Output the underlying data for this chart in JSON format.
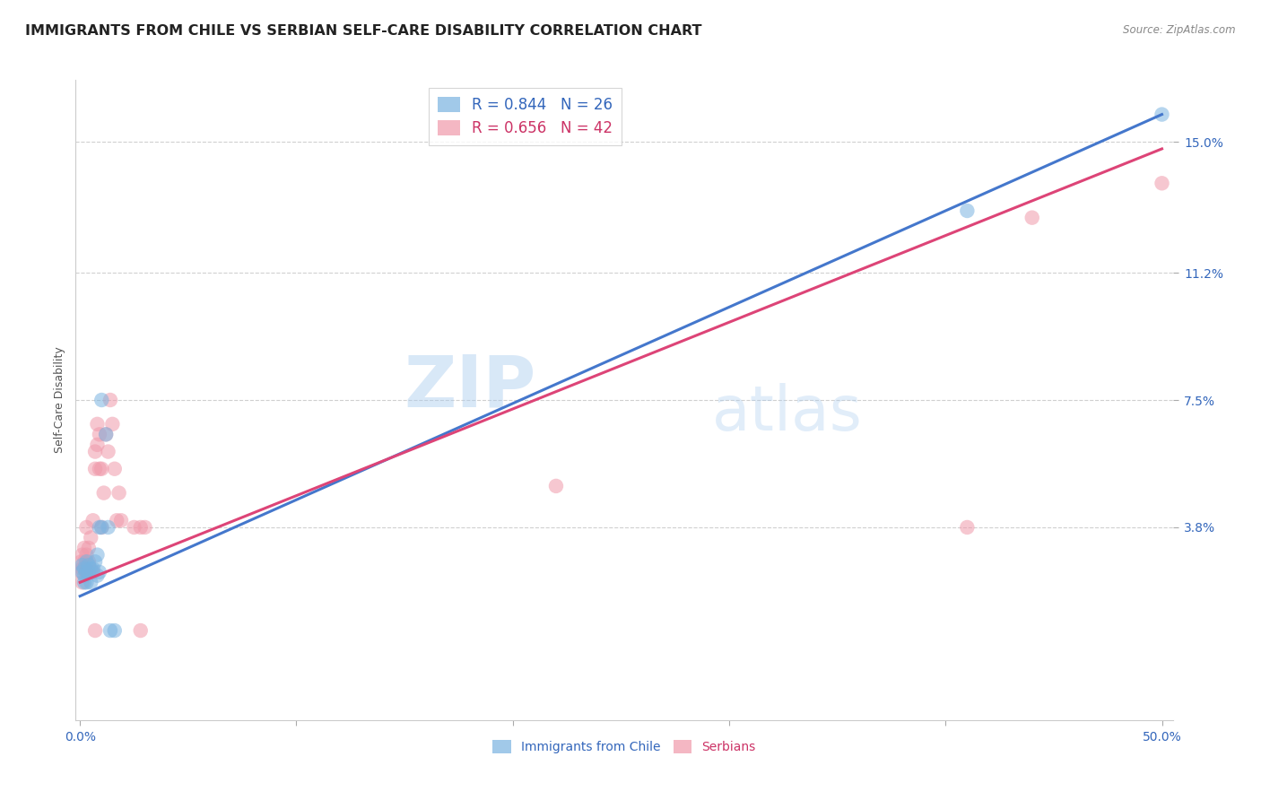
{
  "title": "IMMIGRANTS FROM CHILE VS SERBIAN SELF-CARE DISABILITY CORRELATION CHART",
  "source": "Source: ZipAtlas.com",
  "ylabel": "Self-Care Disability",
  "y_ticks": [
    0.038,
    0.075,
    0.112,
    0.15
  ],
  "y_tick_labels": [
    "3.8%",
    "7.5%",
    "11.2%",
    "15.0%"
  ],
  "x_lim": [
    -0.002,
    0.505
  ],
  "y_lim": [
    -0.018,
    0.168
  ],
  "watermark_zip": "ZIP",
  "watermark_atlas": "atlas",
  "legend_entries": [
    {
      "R": "0.844",
      "N": "26"
    },
    {
      "R": "0.656",
      "N": "42"
    }
  ],
  "legend_labels": [
    "Immigrants from Chile",
    "Serbians"
  ],
  "chile_color": "#7ab3e0",
  "serbian_color": "#f099aa",
  "chile_line_color": "#4477cc",
  "serbian_line_color": "#dd4477",
  "chile_line": [
    [
      0.0,
      0.018
    ],
    [
      0.5,
      0.158
    ]
  ],
  "serbian_line": [
    [
      0.0,
      0.022
    ],
    [
      0.5,
      0.148
    ]
  ],
  "chile_points": [
    [
      0.001,
      0.027
    ],
    [
      0.001,
      0.025
    ],
    [
      0.002,
      0.026
    ],
    [
      0.002,
      0.022
    ],
    [
      0.002,
      0.024
    ],
    [
      0.003,
      0.025
    ],
    [
      0.003,
      0.022
    ],
    [
      0.003,
      0.028
    ],
    [
      0.004,
      0.025
    ],
    [
      0.004,
      0.027
    ],
    [
      0.005,
      0.026
    ],
    [
      0.005,
      0.022
    ],
    [
      0.006,
      0.026
    ],
    [
      0.007,
      0.028
    ],
    [
      0.008,
      0.03
    ],
    [
      0.008,
      0.024
    ],
    [
      0.009,
      0.025
    ],
    [
      0.01,
      0.075
    ],
    [
      0.012,
      0.065
    ],
    [
      0.014,
      0.008
    ],
    [
      0.016,
      0.008
    ],
    [
      0.009,
      0.038
    ],
    [
      0.01,
      0.038
    ],
    [
      0.013,
      0.038
    ],
    [
      0.41,
      0.13
    ],
    [
      0.5,
      0.158
    ]
  ],
  "serbian_points": [
    [
      0.0005,
      0.028
    ],
    [
      0.0005,
      0.025
    ],
    [
      0.001,
      0.03
    ],
    [
      0.001,
      0.026
    ],
    [
      0.001,
      0.022
    ],
    [
      0.002,
      0.032
    ],
    [
      0.002,
      0.028
    ],
    [
      0.002,
      0.026
    ],
    [
      0.003,
      0.03
    ],
    [
      0.003,
      0.025
    ],
    [
      0.003,
      0.038
    ],
    [
      0.004,
      0.032
    ],
    [
      0.004,
      0.028
    ],
    [
      0.005,
      0.035
    ],
    [
      0.006,
      0.025
    ],
    [
      0.006,
      0.04
    ],
    [
      0.007,
      0.06
    ],
    [
      0.007,
      0.055
    ],
    [
      0.008,
      0.068
    ],
    [
      0.008,
      0.062
    ],
    [
      0.009,
      0.065
    ],
    [
      0.009,
      0.055
    ],
    [
      0.01,
      0.055
    ],
    [
      0.01,
      0.038
    ],
    [
      0.011,
      0.048
    ],
    [
      0.012,
      0.065
    ],
    [
      0.013,
      0.06
    ],
    [
      0.014,
      0.075
    ],
    [
      0.015,
      0.068
    ],
    [
      0.016,
      0.055
    ],
    [
      0.017,
      0.04
    ],
    [
      0.018,
      0.048
    ],
    [
      0.019,
      0.04
    ],
    [
      0.025,
      0.038
    ],
    [
      0.028,
      0.038
    ],
    [
      0.03,
      0.038
    ],
    [
      0.028,
      0.008
    ],
    [
      0.22,
      0.05
    ],
    [
      0.41,
      0.038
    ],
    [
      0.44,
      0.128
    ],
    [
      0.5,
      0.138
    ],
    [
      0.007,
      0.008
    ]
  ],
  "background_color": "#ffffff",
  "grid_color": "#d0d0d0",
  "title_fontsize": 11.5,
  "axis_label_fontsize": 9,
  "tick_fontsize": 10
}
